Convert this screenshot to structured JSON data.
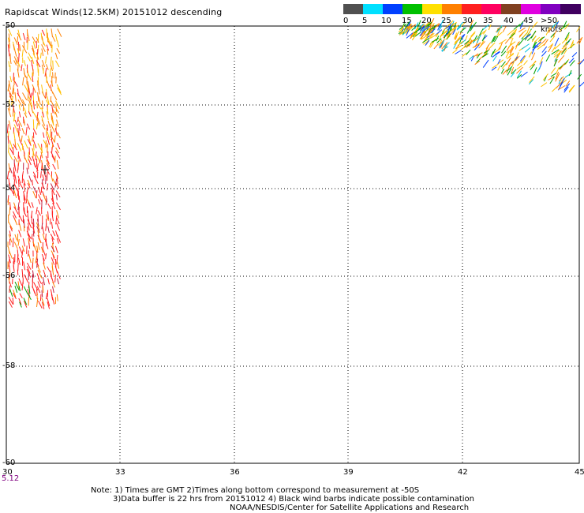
{
  "title": "Rapidscat Winds(12.5KM) 20151012 descending",
  "legend": {
    "colors": [
      "#505050",
      "#00e0ff",
      "#0040ff",
      "#00c000",
      "#ffe000",
      "#ff8000",
      "#ff2020",
      "#ff0060",
      "#804020",
      "#e000e0",
      "#8000c0",
      "#400060"
    ],
    "labels": [
      "0",
      "5",
      "10",
      "15",
      "20",
      "25",
      "30",
      "35",
      "40",
      "45",
      ">50 knots"
    ]
  },
  "axes": {
    "x_ticks": [
      "30",
      "33",
      "36",
      "39",
      "42",
      "45"
    ],
    "y_ticks": [
      "-50",
      "-52",
      "-54",
      "-56",
      "-58",
      "-60"
    ]
  },
  "time_label": "5.12",
  "notes": {
    "line1": "Note: 1) Times are GMT 2)Times along bottom correspond to measurement at -50S",
    "line2": "3)Data buffer is 22 hrs from 20151012 4) Black wind barbs indicate possible contamination",
    "line3": "NOAA/NESDIS/Center for Satellite Applications and Research"
  }
}
